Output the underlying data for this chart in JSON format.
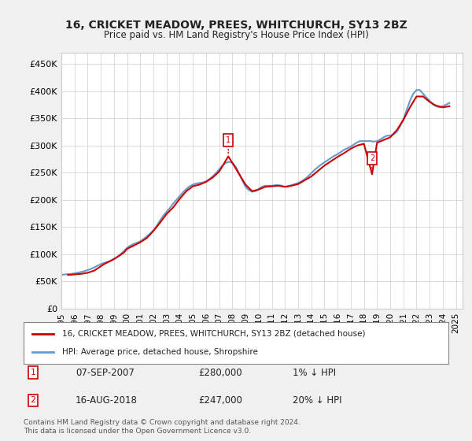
{
  "title": "16, CRICKET MEADOW, PREES, WHITCHURCH, SY13 2BZ",
  "subtitle": "Price paid vs. HM Land Registry's House Price Index (HPI)",
  "ylabel_ticks": [
    "£0",
    "£50K",
    "£100K",
    "£150K",
    "£200K",
    "£250K",
    "£300K",
    "£350K",
    "£400K",
    "£450K"
  ],
  "ytick_values": [
    0,
    50000,
    100000,
    150000,
    200000,
    250000,
    300000,
    350000,
    400000,
    450000
  ],
  "ylim": [
    0,
    470000
  ],
  "xlim_start": 1995.0,
  "xlim_end": 2025.5,
  "line1_color": "#cc0000",
  "line2_color": "#6699cc",
  "bg_color": "#f0f0f0",
  "plot_bg_color": "#ffffff",
  "marker1_date": 2007.69,
  "marker1_value": 280000,
  "marker1_label": "1",
  "marker2_date": 2018.62,
  "marker2_value": 247000,
  "marker2_label": "2",
  "legend_label1": "16, CRICKET MEADOW, PREES, WHITCHURCH, SY13 2BZ (detached house)",
  "legend_label2": "HPI: Average price, detached house, Shropshire",
  "table_row1": "1    07-SEP-2007    £280,000    1% ↓ HPI",
  "table_row2": "2    16-AUG-2018    £247,000    20% ↓ HPI",
  "footer": "Contains HM Land Registry data © Crown copyright and database right 2024.\nThis data is licensed under the Open Government Licence v3.0.",
  "hpi_data_x": [
    1995.0,
    1995.25,
    1995.5,
    1995.75,
    1996.0,
    1996.25,
    1996.5,
    1996.75,
    1997.0,
    1997.25,
    1997.5,
    1997.75,
    1998.0,
    1998.25,
    1998.5,
    1998.75,
    1999.0,
    1999.25,
    1999.5,
    1999.75,
    2000.0,
    2000.25,
    2000.5,
    2000.75,
    2001.0,
    2001.25,
    2001.5,
    2001.75,
    2002.0,
    2002.25,
    2002.5,
    2002.75,
    2003.0,
    2003.25,
    2003.5,
    2003.75,
    2004.0,
    2004.25,
    2004.5,
    2004.75,
    2005.0,
    2005.25,
    2005.5,
    2005.75,
    2006.0,
    2006.25,
    2006.5,
    2006.75,
    2007.0,
    2007.25,
    2007.5,
    2007.75,
    2008.0,
    2008.25,
    2008.5,
    2008.75,
    2009.0,
    2009.25,
    2009.5,
    2009.75,
    2010.0,
    2010.25,
    2010.5,
    2010.75,
    2011.0,
    2011.25,
    2011.5,
    2011.75,
    2012.0,
    2012.25,
    2012.5,
    2012.75,
    2013.0,
    2013.25,
    2013.5,
    2013.75,
    2014.0,
    2014.25,
    2014.5,
    2014.75,
    2015.0,
    2015.25,
    2015.5,
    2015.75,
    2016.0,
    2016.25,
    2016.5,
    2016.75,
    2017.0,
    2017.25,
    2017.5,
    2017.75,
    2018.0,
    2018.25,
    2018.5,
    2018.75,
    2019.0,
    2019.25,
    2019.5,
    2019.75,
    2020.0,
    2020.25,
    2020.5,
    2020.75,
    2021.0,
    2021.25,
    2021.5,
    2021.75,
    2022.0,
    2022.25,
    2022.5,
    2022.75,
    2023.0,
    2023.25,
    2023.5,
    2023.75,
    2024.0,
    2024.25,
    2024.5
  ],
  "hpi_data_y": [
    62000,
    63000,
    63500,
    64000,
    65000,
    66000,
    67500,
    69000,
    71000,
    73000,
    76000,
    79000,
    82000,
    84000,
    86000,
    88000,
    91000,
    95000,
    100000,
    106000,
    112000,
    116000,
    119000,
    121000,
    124000,
    128000,
    133000,
    138000,
    144000,
    152000,
    162000,
    171000,
    178000,
    185000,
    193000,
    200000,
    207000,
    214000,
    220000,
    225000,
    228000,
    230000,
    231000,
    232000,
    234000,
    238000,
    243000,
    249000,
    256000,
    263000,
    268000,
    270000,
    268000,
    261000,
    249000,
    236000,
    224000,
    218000,
    215000,
    216000,
    220000,
    224000,
    226000,
    226000,
    226000,
    227000,
    227000,
    226000,
    224000,
    225000,
    227000,
    229000,
    231000,
    234000,
    238000,
    243000,
    249000,
    255000,
    260000,
    265000,
    269000,
    273000,
    277000,
    281000,
    284000,
    288000,
    292000,
    295000,
    298000,
    302000,
    306000,
    308000,
    308000,
    308000,
    308000,
    307000,
    308000,
    311000,
    315000,
    318000,
    318000,
    320000,
    325000,
    335000,
    348000,
    365000,
    382000,
    395000,
    402000,
    402000,
    395000,
    388000,
    382000,
    375000,
    372000,
    370000,
    372000,
    375000,
    378000
  ],
  "price_data_x": [
    1995.5,
    1996.5,
    1997.0,
    1997.5,
    1997.75,
    1998.25,
    1998.75,
    1999.25,
    1999.75,
    2000.0,
    2000.5,
    2001.0,
    2001.5,
    2002.0,
    2002.5,
    2003.0,
    2003.5,
    2004.0,
    2004.5,
    2005.0,
    2005.5,
    2006.0,
    2006.5,
    2007.0,
    2007.69,
    2008.0,
    2008.5,
    2009.0,
    2009.5,
    2010.0,
    2010.5,
    2011.0,
    2011.5,
    2012.0,
    2012.5,
    2013.0,
    2013.5,
    2014.0,
    2014.5,
    2015.0,
    2015.5,
    2016.0,
    2016.5,
    2017.0,
    2017.5,
    2018.0,
    2018.62,
    2019.0,
    2019.5,
    2020.0,
    2020.5,
    2021.0,
    2021.5,
    2022.0,
    2022.5,
    2023.0,
    2023.5,
    2024.0,
    2024.5
  ],
  "price_data_y": [
    62000,
    64000,
    66000,
    70000,
    74000,
    82000,
    88000,
    95000,
    103000,
    110000,
    116000,
    122000,
    130000,
    143000,
    158000,
    174000,
    186000,
    202000,
    216000,
    225000,
    228000,
    233000,
    241000,
    252000,
    280000,
    268000,
    248000,
    228000,
    216000,
    219000,
    224000,
    225000,
    226000,
    224000,
    226000,
    229000,
    236000,
    243000,
    253000,
    263000,
    271000,
    279000,
    286000,
    294000,
    300000,
    303000,
    247000,
    305000,
    310000,
    315000,
    328000,
    347000,
    370000,
    390000,
    390000,
    380000,
    373000,
    370000,
    372000
  ]
}
